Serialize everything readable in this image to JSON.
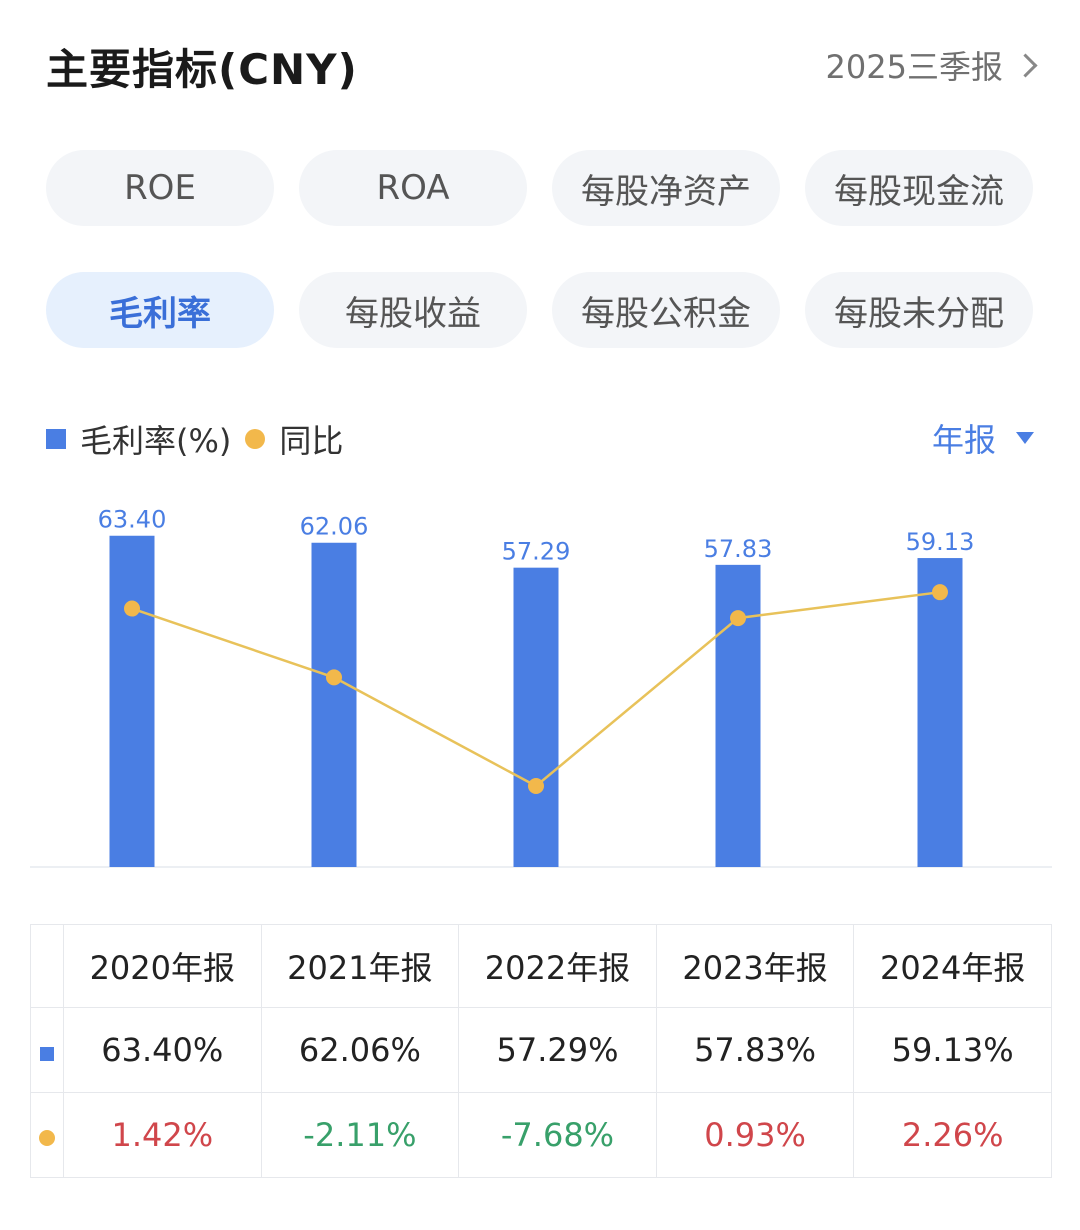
{
  "header": {
    "title": "主要指标(CNY)",
    "period": "2025三季报"
  },
  "chips": [
    {
      "label": "ROE",
      "active": false
    },
    {
      "label": "ROA",
      "active": false
    },
    {
      "label": "每股净资产",
      "active": false
    },
    {
      "label": "每股现金流",
      "active": false
    },
    {
      "label": "毛利率",
      "active": true
    },
    {
      "label": "每股收益",
      "active": false
    },
    {
      "label": "每股公积金",
      "active": false
    },
    {
      "label": "每股未分配",
      "active": false
    }
  ],
  "legend": {
    "bar": "毛利率(%)",
    "line": "同比",
    "dropdown": "年报"
  },
  "colors": {
    "bar": "#4a7ee3",
    "line": "#f2b84b",
    "positive": "#d0464b",
    "negative": "#38a06a"
  },
  "chart_data": {
    "type": "bar",
    "categories": [
      "2020年报",
      "2021年报",
      "2022年报",
      "2023年报",
      "2024年报"
    ],
    "series": [
      {
        "name": "毛利率(%)",
        "type": "bar",
        "values": [
          63.4,
          62.06,
          57.29,
          57.83,
          59.13
        ],
        "labels": [
          "63.40",
          "62.06",
          "57.29",
          "57.83",
          "59.13"
        ]
      },
      {
        "name": "同比",
        "type": "line",
        "values": [
          1.42,
          -2.11,
          -7.68,
          0.93,
          2.26
        ]
      }
    ],
    "grid": false,
    "legend_position": "top-left"
  },
  "table": {
    "headers": [
      "2020年报",
      "2021年报",
      "2022年报",
      "2023年报",
      "2024年报"
    ],
    "row_bar": [
      "63.40%",
      "62.06%",
      "57.29%",
      "57.83%",
      "59.13%"
    ],
    "row_line": [
      "1.42%",
      "-2.11%",
      "-7.68%",
      "0.93%",
      "2.26%"
    ]
  }
}
